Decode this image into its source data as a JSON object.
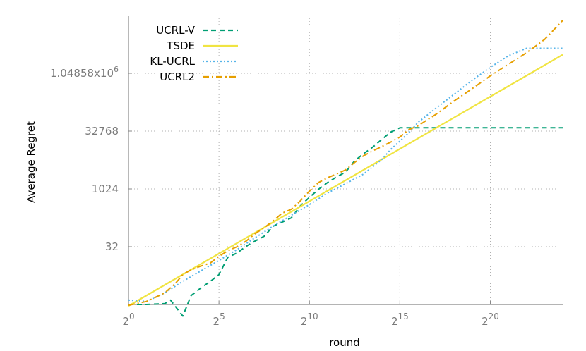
{
  "chart_data": {
    "type": "line",
    "xlabel": "round",
    "ylabel": "Average Regret",
    "x_scale": "log2",
    "y_scale": "log2",
    "xlim": [
      1,
      16777216
    ],
    "ylim": [
      1,
      33554432
    ],
    "x_ticks": [
      {
        "value": 1,
        "base": "2",
        "exp": "0"
      },
      {
        "value": 32,
        "base": "2",
        "exp": "5"
      },
      {
        "value": 1024,
        "base": "2",
        "exp": "10"
      },
      {
        "value": 32768,
        "base": "2",
        "exp": "15"
      },
      {
        "value": 1048576,
        "base": "2",
        "exp": "20"
      }
    ],
    "y_ticks": [
      {
        "value": 32,
        "label": "32"
      },
      {
        "value": 1024,
        "label": "1024"
      },
      {
        "value": 32768,
        "label": "32768"
      },
      {
        "value": 1048576,
        "label": "1.04858x10",
        "exp": "6"
      }
    ],
    "grid": true,
    "legend_position": "top-left",
    "series": [
      {
        "name": "UCRL-V",
        "color": "#009e73",
        "dash": "dashed",
        "x": [
          1,
          2,
          4,
          5,
          8,
          11,
          16,
          23,
          32,
          45,
          64,
          91,
          128,
          181,
          256,
          362,
          512,
          724,
          1024,
          1448,
          2048,
          2896,
          4096,
          5793,
          8192,
          11585,
          16384,
          23170,
          32768,
          46341,
          65536,
          92682,
          131072,
          16777216
        ],
        "y": [
          1,
          1,
          1.05,
          1.3,
          0.5,
          1.7,
          2.7,
          4,
          6,
          17,
          22,
          33,
          45,
          60,
          110,
          140,
          180,
          370,
          620,
          1000,
          1500,
          2100,
          2800,
          5500,
          8500,
          12500,
          20000,
          31000,
          40000,
          40000,
          40000,
          40000,
          40000,
          40000
        ]
      },
      {
        "name": "TSDE",
        "color": "#f0e442",
        "dash": "solid",
        "x": [
          1,
          16777216
        ],
        "y": [
          0.92,
          3200000
        ]
      },
      {
        "name": "KL-UCRL",
        "color": "#56b4e9",
        "dash": "dotted",
        "x": [
          1,
          2,
          4,
          8,
          16,
          32,
          64,
          128,
          256,
          512,
          1024,
          2048,
          4096,
          8192,
          16384,
          23170,
          32768,
          46341,
          65536,
          131072,
          262144,
          524288,
          1048576,
          2097152,
          4194304,
          8388608,
          16777216
        ],
        "y": [
          1.3,
          1.2,
          2,
          4,
          7.5,
          14,
          27,
          55,
          110,
          210,
          400,
          800,
          1400,
          2500,
          6000,
          11000,
          18000,
          30000,
          55000,
          130000,
          300000,
          700000,
          1500000,
          3000000,
          4700000,
          4700000,
          4700000
        ]
      },
      {
        "name": "UCRL2",
        "color": "#e69f00",
        "dash": "dashdot",
        "x": [
          1,
          2,
          4,
          6,
          8,
          11,
          16,
          23,
          32,
          45,
          64,
          91,
          128,
          181,
          256,
          362,
          512,
          724,
          1024,
          1448,
          2048,
          2896,
          4096,
          5793,
          8192,
          11585,
          16384,
          23170,
          32768,
          46341,
          65536,
          131072,
          262144,
          524288,
          1048576,
          2097152,
          4194304,
          8388608,
          16777216
        ],
        "y": [
          0.95,
          1.2,
          2,
          3.5,
          6,
          8,
          10,
          12,
          18,
          25,
          32,
          45,
          70,
          100,
          150,
          240,
          300,
          500,
          900,
          1500,
          2000,
          2500,
          3200,
          5000,
          7500,
          10000,
          13000,
          17000,
          23000,
          36000,
          45000,
          90000,
          200000,
          420000,
          900000,
          1800000,
          3600000,
          8000000,
          25000000
        ]
      }
    ]
  }
}
